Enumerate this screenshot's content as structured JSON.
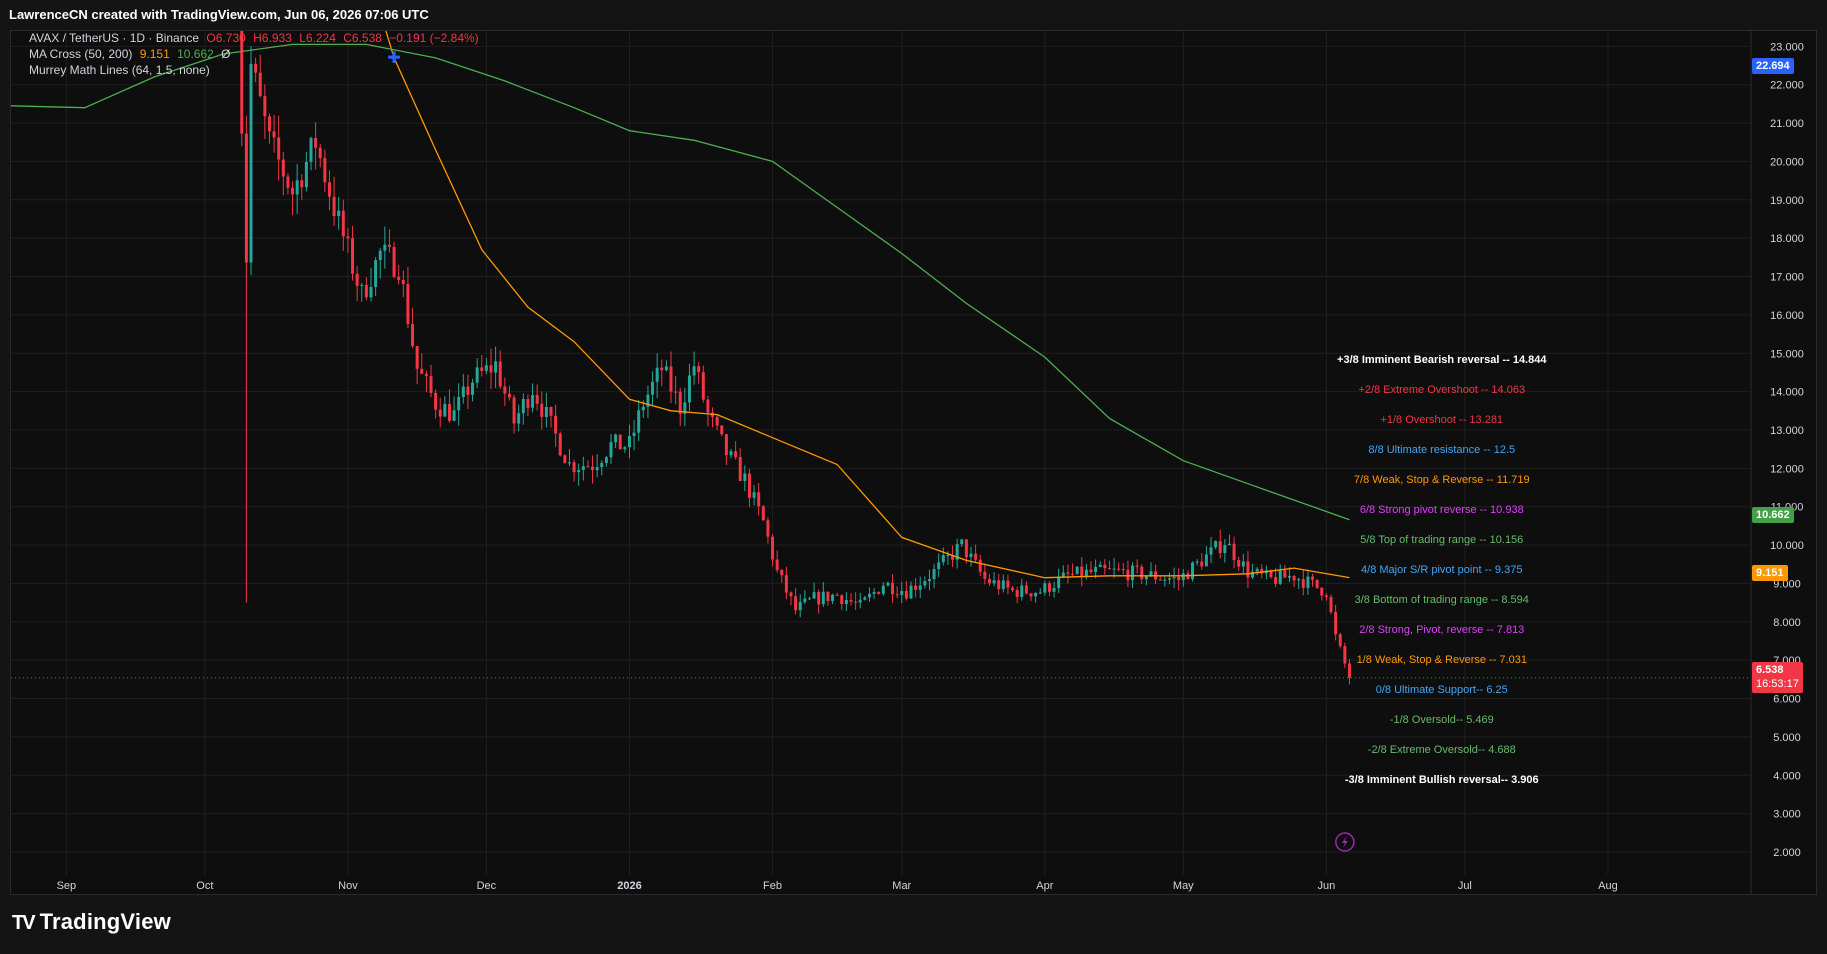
{
  "header": {
    "caption": "LawrenceCN created with TradingView.com, Jun 06, 2026 07:06 UTC"
  },
  "legend": {
    "symbol": "AVAX / TetherUS · 1D · Binance",
    "ohlc": {
      "open": "O6.730",
      "high": "H6.933",
      "low": "L6.224",
      "close": "C6.538",
      "change": "−0.191 (−2.84%)"
    },
    "ma_label": "MA Cross (50, 200)",
    "ma_fast": "9.151",
    "ma_slow": "10.662",
    "ma_extra": "Ø",
    "murrey_label": "Murrey Math Lines (64, 1.5, none)"
  },
  "badges": {
    "top_value": "22.694",
    "ma_slow": "10.662",
    "ma_fast": "9.151",
    "last_price": "6.538",
    "countdown": "16:53:17"
  },
  "footer": {
    "brand": "TradingView",
    "brand_mark": "TV"
  },
  "colors": {
    "up": "#26a69a",
    "down": "#f23645",
    "ma_fast": "#ff9800",
    "ma_slow": "#4caf50",
    "grid": "#1f1f1f",
    "axis_text": "#d1d4dc"
  },
  "chart_data": {
    "type": "candlestick",
    "title": "",
    "xlabel": "",
    "ylabel": "",
    "ylim": [
      1.4,
      23.4
    ],
    "y_ticks": [
      2,
      3,
      4,
      5,
      6,
      7,
      8,
      9,
      10,
      11,
      12,
      13,
      14,
      15,
      16,
      17,
      18,
      19,
      20,
      21,
      22,
      23
    ],
    "y_tick_labels": [
      "2.000",
      "3.000",
      "4.000",
      "5.000",
      "6.000",
      "7.000",
      "8.000",
      "9.000",
      "10.000",
      "11.000",
      "12.000",
      "13.000",
      "14.000",
      "15.000",
      "16.000",
      "17.000",
      "18.000",
      "19.000",
      "20.000",
      "21.000",
      "22.000",
      "23.000"
    ],
    "x_range": [
      "2025-08-20",
      "2026-09-01"
    ],
    "x_ticks": [
      {
        "date": "2025-09-01",
        "label": "Sep"
      },
      {
        "date": "2025-10-01",
        "label": "Oct"
      },
      {
        "date": "2025-11-01",
        "label": "Nov"
      },
      {
        "date": "2025-12-01",
        "label": "Dec"
      },
      {
        "date": "2026-01-01",
        "label": "2026"
      },
      {
        "date": "2026-02-01",
        "label": "Feb"
      },
      {
        "date": "2026-03-01",
        "label": "Mar"
      },
      {
        "date": "2026-04-01",
        "label": "Apr"
      },
      {
        "date": "2026-05-01",
        "label": "May"
      },
      {
        "date": "2026-06-01",
        "label": "Jun"
      },
      {
        "date": "2026-07-01",
        "label": "Jul"
      },
      {
        "date": "2026-08-01",
        "label": "Aug"
      }
    ],
    "price_path": [
      {
        "date": "2025-10-08",
        "close": 24.5
      },
      {
        "date": "2025-10-10",
        "close": 17.5
      },
      {
        "date": "2025-10-11",
        "close": 22.5
      },
      {
        "date": "2025-10-15",
        "close": 20.5
      },
      {
        "date": "2025-10-20",
        "close": 19.2
      },
      {
        "date": "2025-10-25",
        "close": 20.5
      },
      {
        "date": "2025-10-29",
        "close": 18.8
      },
      {
        "date": "2025-11-04",
        "close": 16.5
      },
      {
        "date": "2025-11-08",
        "close": 17.6
      },
      {
        "date": "2025-11-12",
        "close": 17.3
      },
      {
        "date": "2025-11-16",
        "close": 14.6
      },
      {
        "date": "2025-11-20",
        "close": 13.7
      },
      {
        "date": "2025-11-24",
        "close": 13.4
      },
      {
        "date": "2025-11-28",
        "close": 14.3
      },
      {
        "date": "2025-12-03",
        "close": 14.7
      },
      {
        "date": "2025-12-07",
        "close": 13.2
      },
      {
        "date": "2025-12-11",
        "close": 14.1
      },
      {
        "date": "2025-12-15",
        "close": 13.1
      },
      {
        "date": "2025-12-19",
        "close": 12.1
      },
      {
        "date": "2025-12-24",
        "close": 12.1
      },
      {
        "date": "2025-12-28",
        "close": 12.6
      },
      {
        "date": "2026-01-01",
        "close": 12.6
      },
      {
        "date": "2026-01-04",
        "close": 13.7
      },
      {
        "date": "2026-01-08",
        "close": 14.6
      },
      {
        "date": "2026-01-12",
        "close": 13.6
      },
      {
        "date": "2026-01-15",
        "close": 14.7
      },
      {
        "date": "2026-01-18",
        "close": 13.4
      },
      {
        "date": "2026-01-22",
        "close": 12.4
      },
      {
        "date": "2026-01-26",
        "close": 11.7
      },
      {
        "date": "2026-01-30",
        "close": 10.6
      },
      {
        "date": "2026-02-02",
        "close": 9.3
      },
      {
        "date": "2026-02-06",
        "close": 8.3
      },
      {
        "date": "2026-02-10",
        "close": 8.6
      },
      {
        "date": "2026-02-15",
        "close": 8.7
      },
      {
        "date": "2026-02-20",
        "close": 8.4
      },
      {
        "date": "2026-02-25",
        "close": 9.0
      },
      {
        "date": "2026-03-02",
        "close": 8.8
      },
      {
        "date": "2026-03-08",
        "close": 9.3
      },
      {
        "date": "2026-03-14",
        "close": 10.0
      },
      {
        "date": "2026-03-19",
        "close": 9.1
      },
      {
        "date": "2026-03-25",
        "close": 8.8
      },
      {
        "date": "2026-03-31",
        "close": 8.8
      },
      {
        "date": "2026-04-06",
        "close": 9.2
      },
      {
        "date": "2026-04-12",
        "close": 9.3
      },
      {
        "date": "2026-04-18",
        "close": 9.3
      },
      {
        "date": "2026-04-24",
        "close": 9.2
      },
      {
        "date": "2026-04-30",
        "close": 9.1
      },
      {
        "date": "2026-05-05",
        "close": 9.6
      },
      {
        "date": "2026-05-10",
        "close": 10.1
      },
      {
        "date": "2026-05-15",
        "close": 9.3
      },
      {
        "date": "2026-05-20",
        "close": 9.1
      },
      {
        "date": "2026-05-25",
        "close": 9.2
      },
      {
        "date": "2026-05-30",
        "close": 8.9
      },
      {
        "date": "2026-06-01",
        "close": 8.8
      },
      {
        "date": "2026-06-03",
        "close": 7.6
      },
      {
        "date": "2026-06-05",
        "close": 6.9
      },
      {
        "date": "2026-06-06",
        "close": 6.538
      }
    ],
    "series": [
      {
        "name": "MA 50",
        "color": "#ff9800",
        "points": [
          {
            "date": "2025-11-09",
            "value": 23.5
          },
          {
            "date": "2025-11-11",
            "value": 22.7
          },
          {
            "date": "2025-11-20",
            "value": 20.3
          },
          {
            "date": "2025-11-30",
            "value": 17.7
          },
          {
            "date": "2025-12-10",
            "value": 16.2
          },
          {
            "date": "2025-12-20",
            "value": 15.3
          },
          {
            "date": "2026-01-01",
            "value": 13.8
          },
          {
            "date": "2026-01-10",
            "value": 13.5
          },
          {
            "date": "2026-01-20",
            "value": 13.4
          },
          {
            "date": "2026-02-01",
            "value": 12.8
          },
          {
            "date": "2026-02-15",
            "value": 12.1
          },
          {
            "date": "2026-03-01",
            "value": 10.2
          },
          {
            "date": "2026-03-15",
            "value": 9.6
          },
          {
            "date": "2026-04-01",
            "value": 9.15
          },
          {
            "date": "2026-04-15",
            "value": 9.2
          },
          {
            "date": "2026-05-01",
            "value": 9.2
          },
          {
            "date": "2026-05-15",
            "value": 9.25
          },
          {
            "date": "2026-05-25",
            "value": 9.4
          },
          {
            "date": "2026-06-06",
            "value": 9.151
          }
        ]
      },
      {
        "name": "MA 200",
        "color": "#4caf50",
        "points": [
          {
            "date": "2025-08-20",
            "value": 21.45
          },
          {
            "date": "2025-09-05",
            "value": 21.4
          },
          {
            "date": "2025-09-20",
            "value": 22.2
          },
          {
            "date": "2025-10-05",
            "value": 22.8
          },
          {
            "date": "2025-10-20",
            "value": 23.05
          },
          {
            "date": "2025-11-05",
            "value": 23.05
          },
          {
            "date": "2025-11-20",
            "value": 22.7
          },
          {
            "date": "2025-12-05",
            "value": 22.1
          },
          {
            "date": "2025-12-20",
            "value": 21.4
          },
          {
            "date": "2026-01-01",
            "value": 20.8
          },
          {
            "date": "2026-01-15",
            "value": 20.55
          },
          {
            "date": "2026-02-01",
            "value": 20.0
          },
          {
            "date": "2026-02-15",
            "value": 18.8
          },
          {
            "date": "2026-03-01",
            "value": 17.6
          },
          {
            "date": "2026-03-15",
            "value": 16.3
          },
          {
            "date": "2026-04-01",
            "value": 14.9
          },
          {
            "date": "2026-04-15",
            "value": 13.3
          },
          {
            "date": "2026-05-01",
            "value": 12.2
          },
          {
            "date": "2026-05-15",
            "value": 11.6
          },
          {
            "date": "2026-06-06",
            "value": 10.662
          }
        ]
      }
    ],
    "murrey_levels": [
      {
        "label": "+3/8 Imminent Bearish reversal --  14.844",
        "value": 14.844,
        "color": "#ffffff"
      },
      {
        "label": "+2/8 Extreme Overshoot --  14.063",
        "value": 14.063,
        "color": "#f23645"
      },
      {
        "label": "+1/8 Overshoot --  13.281",
        "value": 13.281,
        "color": "#f23645"
      },
      {
        "label": "8/8 Ultimate resistance --  12.5",
        "value": 12.5,
        "color": "#42a5f5"
      },
      {
        "label": "7/8 Weak, Stop & Reverse --  11.719",
        "value": 11.719,
        "color": "#ff9800"
      },
      {
        "label": "6/8 Strong pivot reverse --  10.938",
        "value": 10.938,
        "color": "#e040fb"
      },
      {
        "label": "5/8 Top of trading range --  10.156",
        "value": 10.156,
        "color": "#66bb6a"
      },
      {
        "label": "4/8 Major S/R pivot point --  9.375",
        "value": 9.375,
        "color": "#42a5f5"
      },
      {
        "label": "3/8 Bottom of trading range --  8.594",
        "value": 8.594,
        "color": "#66bb6a"
      },
      {
        "label": "2/8 Strong, Pivot, reverse --  7.813",
        "value": 7.813,
        "color": "#e040fb"
      },
      {
        "label": "1/8 Weak, Stop & Reverse --  7.031",
        "value": 7.031,
        "color": "#ff9800"
      },
      {
        "label": "0/8 Ultimate Support--  6.25",
        "value": 6.25,
        "color": "#42a5f5"
      },
      {
        "label": "-1/8 Oversold--  5.469",
        "value": 5.469,
        "color": "#66bb6a"
      },
      {
        "label": "-2/8 Extreme Oversold--  4.688",
        "value": 4.688,
        "color": "#66bb6a"
      },
      {
        "label": "-3/8 Imminent Bullish reversal--  3.906",
        "value": 3.906,
        "color": "#ffffff"
      }
    ],
    "last_price": 6.538,
    "special_wick": {
      "date": "2025-10-10",
      "low": 8.5
    }
  }
}
